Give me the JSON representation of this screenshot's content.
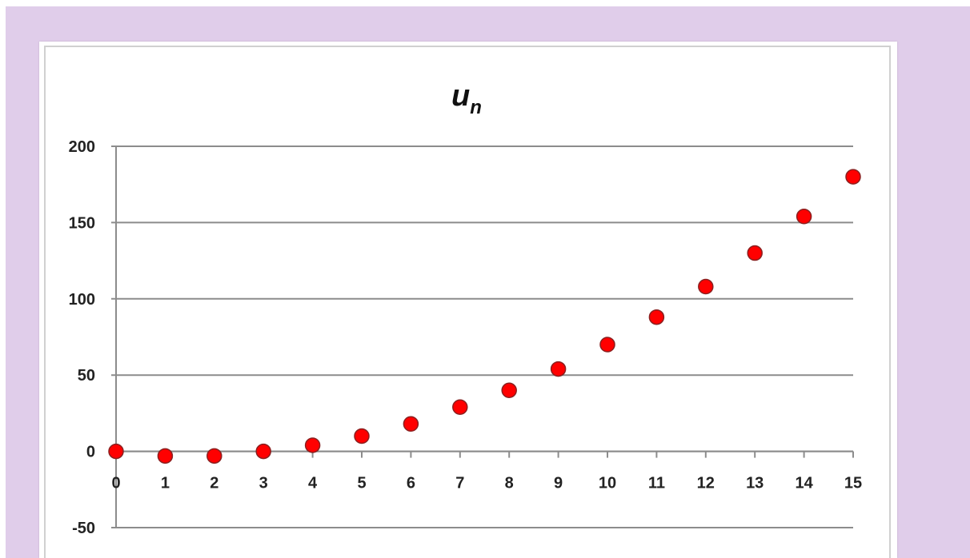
{
  "colors": {
    "background": "#e0cdea",
    "point_fill": "#ff0000",
    "point_stroke": "#8a2020",
    "grid": "#8c8c8c",
    "axis": "#8c8c8c"
  },
  "chart_data": {
    "type": "scatter",
    "title": "u",
    "title_subscript": "n",
    "xlabel": "",
    "ylabel": "",
    "grid": true,
    "legend": "none",
    "x": [
      0,
      1,
      2,
      3,
      4,
      5,
      6,
      7,
      8,
      9,
      10,
      11,
      12,
      13,
      14,
      15
    ],
    "y": [
      0,
      -3,
      -3,
      0,
      4,
      10,
      18,
      29,
      40,
      54,
      70,
      88,
      108,
      130,
      154,
      180
    ],
    "xlim": [
      0,
      15
    ],
    "ylim": [
      -50,
      200
    ],
    "xticks": [
      "0",
      "1",
      "2",
      "3",
      "4",
      "5",
      "6",
      "7",
      "8",
      "9",
      "10",
      "11",
      "12",
      "13",
      "14",
      "15"
    ],
    "yticks": [
      "200",
      "150",
      "100",
      "50",
      "0",
      "-50"
    ]
  }
}
